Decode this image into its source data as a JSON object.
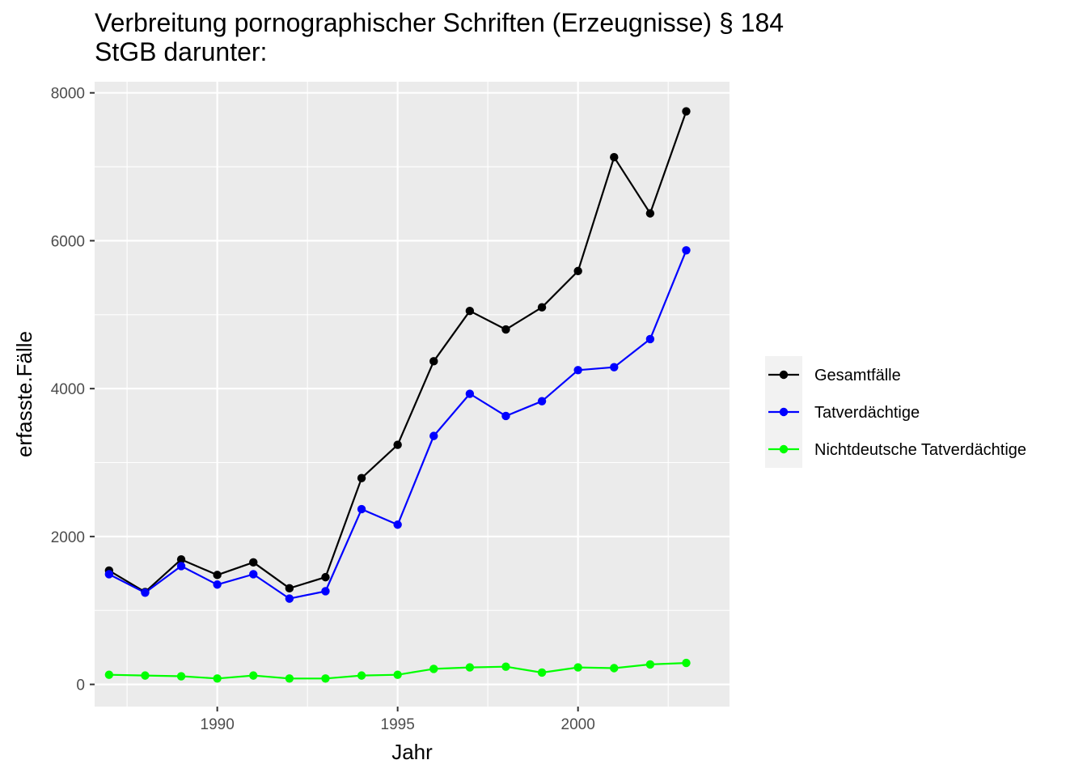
{
  "chart_data": {
    "type": "line",
    "title_lines": [
      "Verbreitung pornographischer Schriften (Erzeugnisse) § 184",
      "StGB darunter:"
    ],
    "xlabel": "Jahr",
    "ylabel": "erfasste.Fälle",
    "xlim": [
      1986.6,
      2004.2
    ],
    "ylim": [
      -300,
      8150
    ],
    "x_breaks": [
      1990,
      1995,
      2000
    ],
    "x_minor_breaks": [
      1987.5,
      1992.5,
      1997.5,
      2002.5
    ],
    "y_breaks": [
      0,
      2000,
      4000,
      6000,
      8000
    ],
    "y_minor_breaks": [
      1000,
      3000,
      5000,
      7000
    ],
    "grid": true,
    "legend_position": "right",
    "x": [
      1987,
      1988,
      1989,
      1990,
      1991,
      1992,
      1993,
      1994,
      1995,
      1996,
      1997,
      1998,
      1999,
      2000,
      2001,
      2002,
      2003
    ],
    "series": [
      {
        "name": "Gesamtfälle",
        "color": "#000000",
        "values": [
          1540,
          1250,
          1690,
          1480,
          1650,
          1300,
          1450,
          2790,
          3240,
          4370,
          5050,
          4800,
          5100,
          5590,
          7130,
          6370,
          7750
        ]
      },
      {
        "name": "Tatverdächtige",
        "color": "#0000ff",
        "values": [
          1490,
          1240,
          1600,
          1350,
          1490,
          1160,
          1260,
          2370,
          2160,
          3360,
          3930,
          3630,
          3830,
          4250,
          4290,
          4670,
          5870
        ]
      },
      {
        "name": "Nichtdeutsche Tatverdächtige",
        "color": "#00ff00",
        "values": [
          130,
          120,
          110,
          80,
          120,
          80,
          80,
          120,
          130,
          210,
          230,
          240,
          160,
          230,
          220,
          270,
          290
        ]
      }
    ]
  }
}
